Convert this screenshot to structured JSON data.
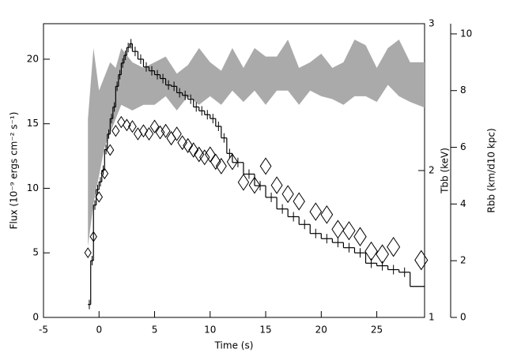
{
  "chart_data": {
    "type": "line",
    "xlabel": "Time (s)",
    "ylabel": "Flux (10⁻⁹ ergs cm⁻² s⁻¹)",
    "y2label": "Tbb (keV)",
    "y3label": "Rbb (km/d10 kpc)",
    "xlim": [
      -5,
      29.3
    ],
    "xticks": [
      -5,
      0,
      5,
      10,
      15,
      20,
      25
    ],
    "ylim": [
      0,
      22.75
    ],
    "yticks": [
      0,
      5,
      10,
      15,
      20
    ],
    "y2lim": [
      1,
      3
    ],
    "y2ticks": [
      1,
      2,
      3
    ],
    "y3lim": [
      0,
      10.36
    ],
    "y3ticks": [
      0,
      2,
      4,
      6,
      8,
      10
    ],
    "series": [
      {
        "type": "band",
        "axis": "y3",
        "color": "#aaaaaa",
        "x": [
          -1,
          -0.5,
          0,
          0.5,
          1,
          1.5,
          2,
          3,
          4,
          5,
          6,
          7,
          8,
          9,
          10,
          11,
          12,
          13,
          14,
          15,
          16,
          17,
          18,
          19,
          20,
          21,
          22,
          23,
          24,
          25,
          26,
          27,
          28,
          29.3
        ],
        "low": [
          2.5,
          4,
          5,
          6,
          6.5,
          7,
          7.5,
          7.3,
          7.5,
          7.5,
          7.8,
          7.3,
          7.8,
          7.5,
          7.8,
          7.5,
          8,
          7.6,
          8,
          7.5,
          8,
          8,
          7.5,
          8,
          7.8,
          7.7,
          7.5,
          7.8,
          7.8,
          7.6,
          8.2,
          7.8,
          7.6,
          7.4
        ],
        "high": [
          7,
          9.5,
          8,
          8.5,
          9,
          8.8,
          9.5,
          9,
          8.8,
          9,
          9.2,
          8.6,
          8.9,
          9.5,
          9,
          8.7,
          9.5,
          8.8,
          9.5,
          9.2,
          9.2,
          9.8,
          8.8,
          9,
          9.3,
          8.8,
          9,
          9.8,
          9.6,
          8.8,
          9.5,
          9.8,
          9,
          9
        ]
      },
      {
        "type": "step",
        "axis": "y",
        "color": "#000000",
        "x": [
          -1,
          -0.75,
          -0.5,
          -0.25,
          0,
          0.25,
          0.5,
          0.75,
          1,
          1.25,
          1.5,
          1.75,
          2,
          2.25,
          2.5,
          2.75,
          3,
          3.5,
          4,
          4.5,
          5,
          5.5,
          6,
          6.5,
          7,
          7.5,
          8,
          8.5,
          9,
          9.5,
          10,
          10.5,
          11,
          11.5,
          12,
          13,
          14,
          15,
          16,
          17,
          18,
          19,
          20,
          21,
          22,
          23,
          24,
          25,
          26,
          27,
          28
        ],
        "values": [
          1,
          4.4,
          8.7,
          9.9,
          10.5,
          11.4,
          13,
          14.2,
          15.4,
          16.3,
          17.9,
          18.8,
          19.7,
          20.3,
          20.9,
          21.2,
          20.6,
          20,
          19.4,
          19.1,
          18.8,
          18.5,
          18,
          17.9,
          17.4,
          17.2,
          16.9,
          16.3,
          16,
          15.7,
          15.4,
          14.8,
          13.9,
          12.7,
          12,
          11.1,
          10.2,
          9.3,
          8.4,
          7.8,
          7.2,
          6.5,
          6.1,
          5.8,
          5.4,
          5,
          4.2,
          4,
          3.7,
          3.5,
          2.4
        ]
      },
      {
        "type": "scatter",
        "axis": "y2",
        "color": "#000000",
        "x": [
          -1,
          -0.5,
          0,
          0.5,
          1,
          1.5,
          2,
          2.5,
          3,
          3.5,
          4,
          4.5,
          5,
          5.5,
          6,
          6.5,
          7,
          7.5,
          8,
          8.5,
          9,
          9.5,
          10,
          10.5,
          11,
          12,
          13,
          14,
          15,
          16,
          17,
          18,
          19.5,
          20.5,
          21.5,
          22.5,
          23.5,
          24.5,
          25.5,
          26.5,
          29
        ],
        "values": [
          1.44,
          1.55,
          1.82,
          1.98,
          2.14,
          2.27,
          2.33,
          2.31,
          2.3,
          2.25,
          2.27,
          2.25,
          2.3,
          2.26,
          2.27,
          2.22,
          2.25,
          2.19,
          2.17,
          2.14,
          2.11,
          2.09,
          2.11,
          2.06,
          2.03,
          2.06,
          1.92,
          1.9,
          2.03,
          1.9,
          1.84,
          1.79,
          1.72,
          1.7,
          1.6,
          1.59,
          1.55,
          1.45,
          1.43,
          1.48,
          1.39
        ]
      }
    ]
  }
}
